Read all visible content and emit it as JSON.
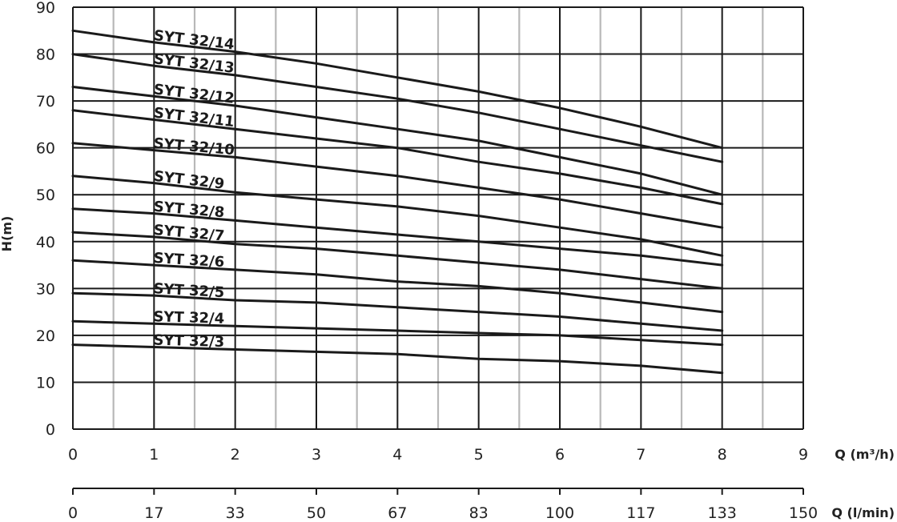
{
  "chart_data": {
    "type": "line",
    "title": "",
    "xlabel": "Q (m³/h)",
    "x2label": "Q (l/min)",
    "ylabel": "H(m)",
    "xlim": [
      0,
      9
    ],
    "ylim": [
      0,
      90
    ],
    "x_ticks": [
      "0",
      "1",
      "2",
      "3",
      "4",
      "5",
      "6",
      "7",
      "8",
      "9"
    ],
    "x2_ticks": [
      "0",
      "17",
      "33",
      "50",
      "67",
      "83",
      "100",
      "117",
      "133",
      "150"
    ],
    "y_ticks": [
      "0",
      "10",
      "20",
      "30",
      "40",
      "50",
      "60",
      "70",
      "80",
      "90"
    ],
    "grid": true,
    "x": [
      0,
      1,
      2,
      3,
      4,
      5,
      6,
      7,
      8
    ],
    "series": [
      {
        "name": "SYT 32/14",
        "values": [
          85,
          82.5,
          80.5,
          78,
          75,
          72,
          68.5,
          64.5,
          60
        ]
      },
      {
        "name": "SYT 32/13",
        "values": [
          80,
          77.5,
          75.5,
          73,
          70.5,
          67.5,
          64,
          60.5,
          57
        ]
      },
      {
        "name": "SYT 32/12",
        "values": [
          73,
          71,
          69,
          66.5,
          64,
          61.5,
          58,
          54.5,
          50
        ]
      },
      {
        "name": "SYT 32/11",
        "values": [
          68,
          66,
          64,
          62,
          60,
          57,
          54.5,
          51.5,
          48
        ]
      },
      {
        "name": "SYT 32/10",
        "values": [
          61,
          59.5,
          58,
          56,
          54,
          51.5,
          49,
          46,
          43
        ]
      },
      {
        "name": "SYT 32/9",
        "values": [
          54,
          52.5,
          50.5,
          49,
          47.5,
          45.5,
          43,
          40.5,
          37
        ]
      },
      {
        "name": "SYT 32/8",
        "values": [
          47,
          46,
          44.5,
          43,
          41.5,
          40,
          38.5,
          37,
          35
        ]
      },
      {
        "name": "SYT 32/7",
        "values": [
          42,
          41,
          39.5,
          38.5,
          37,
          35.5,
          34,
          32,
          30
        ]
      },
      {
        "name": "SYT 32/6",
        "values": [
          36,
          35,
          34,
          33,
          31.5,
          30.5,
          29,
          27,
          25
        ]
      },
      {
        "name": "SYT 32/5",
        "values": [
          29,
          28.5,
          27.5,
          27,
          26,
          25,
          24,
          22.5,
          21
        ]
      },
      {
        "name": "SYT 32/4",
        "values": [
          23,
          22.5,
          22,
          21.5,
          21,
          20.5,
          20,
          19,
          18
        ]
      },
      {
        "name": "SYT 32/3",
        "values": [
          18,
          17.5,
          17,
          16.5,
          16,
          15,
          14.5,
          13.5,
          12
        ]
      }
    ]
  }
}
